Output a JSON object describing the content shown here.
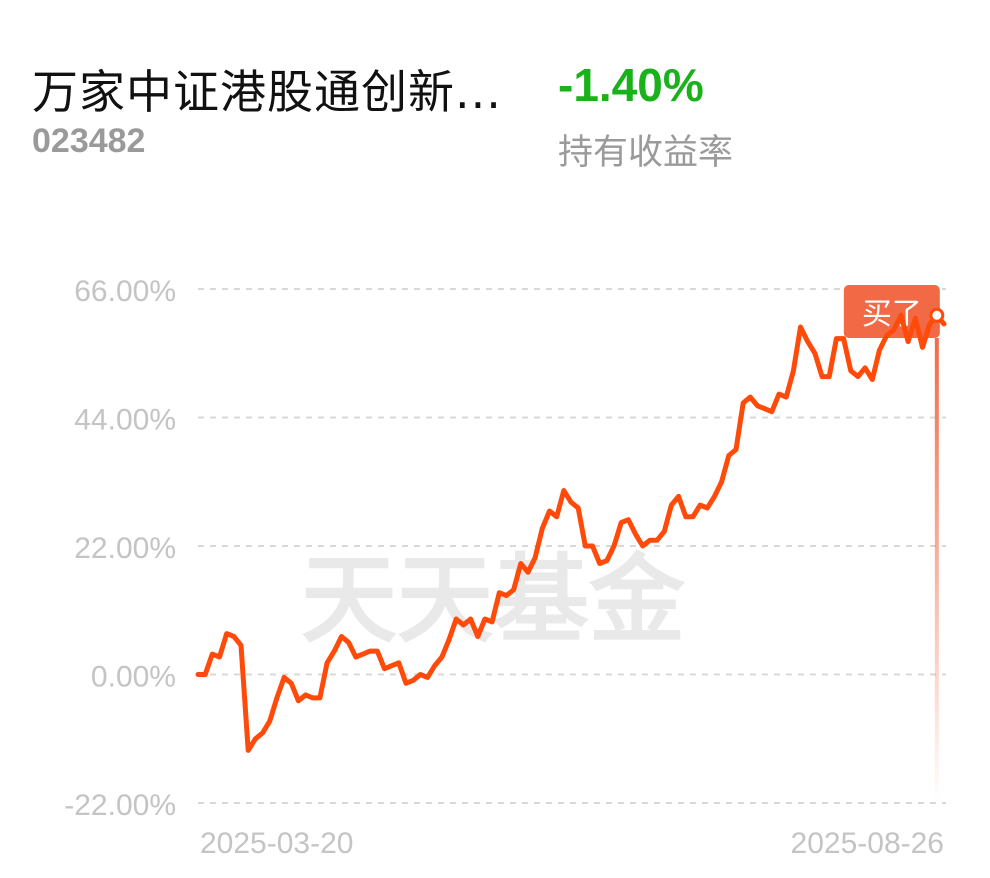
{
  "fund": {
    "name": "万家中证港股通创新...",
    "code": "023482",
    "return_value": "-1.40%",
    "return_label": "持有收益率"
  },
  "watermark": "天天基金",
  "buy_marker_label": "买了",
  "colors": {
    "line": "#ff4a0a",
    "negative_return": "#1ab21a",
    "grid": "#d8d8d8",
    "axis_text": "#c4c4c4",
    "marker_bg": "#f26a45"
  },
  "chart_data": {
    "type": "line",
    "title": "",
    "xlabel": "",
    "ylabel": "",
    "y_unit": "%",
    "ylim": [
      -22,
      66
    ],
    "yticks": [
      66,
      44,
      22,
      0,
      -22
    ],
    "ytick_labels": [
      "66.00%",
      "44.00%",
      "22.00%",
      "0.00%",
      "-22.00%"
    ],
    "x_range": [
      "2025-03-20",
      "2025-08-26"
    ],
    "xtick_labels": [
      "2025-03-20",
      "2025-08-26"
    ],
    "grid": true,
    "legend": "none",
    "buy_date": "2025-08-25",
    "series": [
      {
        "values": [
          0,
          0,
          3.5,
          3,
          7,
          6.5,
          5,
          -13,
          -11,
          -10,
          -8,
          -4,
          -0.5,
          -1.5,
          -4.5,
          -3.5,
          -4,
          -4,
          2,
          4,
          6.5,
          5.5,
          3,
          3.5,
          4,
          4,
          1,
          1.5,
          2,
          -1.5,
          -1,
          0,
          -0.5,
          1.5,
          3,
          6,
          9.5,
          8.5,
          9.5,
          6.5,
          9.5,
          9,
          14,
          13.5,
          14.5,
          19,
          17.5,
          20,
          25,
          28,
          27,
          31.5,
          29.5,
          28.5,
          22,
          22,
          19,
          19.5,
          22,
          26,
          26.5,
          24,
          22,
          23,
          23,
          24.5,
          29,
          30.5,
          27,
          27,
          29,
          28.5,
          30.5,
          33,
          37.5,
          38.5,
          46.5,
          47.5,
          46,
          45.5,
          45,
          48,
          47.5,
          52,
          59.5,
          57,
          55,
          51,
          51,
          57.5,
          57.5,
          52,
          51,
          52.5,
          50.5,
          55.5,
          58,
          59,
          61.5,
          57,
          61,
          56,
          60,
          61.5,
          60
        ]
      }
    ]
  }
}
